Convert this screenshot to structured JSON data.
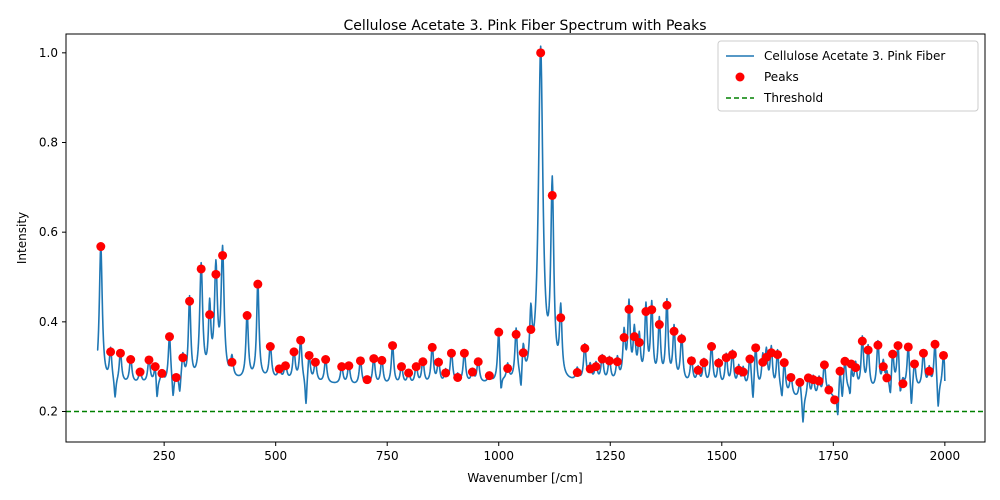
{
  "chart_data": {
    "type": "line",
    "title": "Cellulose Acetate 3. Pink Fiber Spectrum with Peaks",
    "xlabel": "Wavenumber [/cm]",
    "ylabel": "Intensity",
    "xlim": [
      30,
      2090
    ],
    "ylim": [
      0.132,
      1.042
    ],
    "xticks": [
      250,
      500,
      750,
      1000,
      1250,
      1500,
      1750,
      2000
    ],
    "yticks": [
      0.2,
      0.4,
      0.6,
      0.8,
      1.0
    ],
    "ytick_labels": [
      "0.2",
      "0.4",
      "0.6",
      "0.8",
      "1.0"
    ],
    "legend_position": "upper right",
    "colors": {
      "line": "#1f77b4",
      "peaks": "#ff0000",
      "threshold": "#008000"
    },
    "series": [
      {
        "name": "Cellulose Acetate 3. Pink Fiber",
        "kind": "line"
      },
      {
        "name": "Peaks",
        "kind": "scatter"
      },
      {
        "name": "Threshold",
        "kind": "hline",
        "value": 0.2
      }
    ],
    "spectrum_range": [
      100,
      2000
    ],
    "baseline": [
      [
        100,
        0.26
      ],
      [
        300,
        0.26
      ],
      [
        480,
        0.27
      ],
      [
        700,
        0.255
      ],
      [
        1000,
        0.26
      ],
      [
        1400,
        0.26
      ],
      [
        1600,
        0.24
      ],
      [
        1700,
        0.22
      ],
      [
        1800,
        0.24
      ],
      [
        2000,
        0.25
      ]
    ],
    "peaks": [
      {
        "x": 108,
        "y": 0.568
      },
      {
        "x": 130,
        "y": 0.333
      },
      {
        "x": 152,
        "y": 0.33
      },
      {
        "x": 175,
        "y": 0.316
      },
      {
        "x": 196,
        "y": 0.288
      },
      {
        "x": 216,
        "y": 0.315
      },
      {
        "x": 230,
        "y": 0.3
      },
      {
        "x": 245,
        "y": 0.285
      },
      {
        "x": 262,
        "y": 0.367
      },
      {
        "x": 277,
        "y": 0.276
      },
      {
        "x": 292,
        "y": 0.32
      },
      {
        "x": 307,
        "y": 0.446
      },
      {
        "x": 333,
        "y": 0.518
      },
      {
        "x": 352,
        "y": 0.416
      },
      {
        "x": 366,
        "y": 0.506
      },
      {
        "x": 381,
        "y": 0.548
      },
      {
        "x": 402,
        "y": 0.31
      },
      {
        "x": 436,
        "y": 0.414
      },
      {
        "x": 460,
        "y": 0.484
      },
      {
        "x": 488,
        "y": 0.345
      },
      {
        "x": 508,
        "y": 0.295
      },
      {
        "x": 522,
        "y": 0.302
      },
      {
        "x": 541,
        "y": 0.333
      },
      {
        "x": 556,
        "y": 0.359
      },
      {
        "x": 575,
        "y": 0.325
      },
      {
        "x": 589,
        "y": 0.31
      },
      {
        "x": 612,
        "y": 0.316
      },
      {
        "x": 648,
        "y": 0.3
      },
      {
        "x": 664,
        "y": 0.302
      },
      {
        "x": 690,
        "y": 0.313
      },
      {
        "x": 705,
        "y": 0.271
      },
      {
        "x": 720,
        "y": 0.318
      },
      {
        "x": 738,
        "y": 0.314
      },
      {
        "x": 762,
        "y": 0.347
      },
      {
        "x": 782,
        "y": 0.3
      },
      {
        "x": 798,
        "y": 0.286
      },
      {
        "x": 815,
        "y": 0.3
      },
      {
        "x": 830,
        "y": 0.311
      },
      {
        "x": 851,
        "y": 0.343
      },
      {
        "x": 865,
        "y": 0.31
      },
      {
        "x": 881,
        "y": 0.286
      },
      {
        "x": 894,
        "y": 0.33
      },
      {
        "x": 908,
        "y": 0.276
      },
      {
        "x": 923,
        "y": 0.33
      },
      {
        "x": 941,
        "y": 0.288
      },
      {
        "x": 954,
        "y": 0.311
      },
      {
        "x": 979,
        "y": 0.28
      },
      {
        "x": 1000,
        "y": 0.377
      },
      {
        "x": 1020,
        "y": 0.296
      },
      {
        "x": 1039,
        "y": 0.372
      },
      {
        "x": 1055,
        "y": 0.331
      },
      {
        "x": 1072,
        "y": 0.383
      },
      {
        "x": 1094,
        "y": 1.0
      },
      {
        "x": 1120,
        "y": 0.682
      },
      {
        "x": 1139,
        "y": 0.409
      },
      {
        "x": 1176,
        "y": 0.287
      },
      {
        "x": 1193,
        "y": 0.341
      },
      {
        "x": 1205,
        "y": 0.295
      },
      {
        "x": 1218,
        "y": 0.3
      },
      {
        "x": 1232,
        "y": 0.317
      },
      {
        "x": 1248,
        "y": 0.313
      },
      {
        "x": 1266,
        "y": 0.311
      },
      {
        "x": 1281,
        "y": 0.365
      },
      {
        "x": 1292,
        "y": 0.428
      },
      {
        "x": 1304,
        "y": 0.367
      },
      {
        "x": 1315,
        "y": 0.354
      },
      {
        "x": 1330,
        "y": 0.423
      },
      {
        "x": 1343,
        "y": 0.427
      },
      {
        "x": 1360,
        "y": 0.394
      },
      {
        "x": 1377,
        "y": 0.437
      },
      {
        "x": 1393,
        "y": 0.379
      },
      {
        "x": 1410,
        "y": 0.362
      },
      {
        "x": 1432,
        "y": 0.313
      },
      {
        "x": 1447,
        "y": 0.292
      },
      {
        "x": 1460,
        "y": 0.309
      },
      {
        "x": 1477,
        "y": 0.345
      },
      {
        "x": 1493,
        "y": 0.308
      },
      {
        "x": 1510,
        "y": 0.32
      },
      {
        "x": 1524,
        "y": 0.327
      },
      {
        "x": 1538,
        "y": 0.292
      },
      {
        "x": 1548,
        "y": 0.288
      },
      {
        "x": 1563,
        "y": 0.317
      },
      {
        "x": 1576,
        "y": 0.342
      },
      {
        "x": 1592,
        "y": 0.31
      },
      {
        "x": 1600,
        "y": 0.321
      },
      {
        "x": 1611,
        "y": 0.331
      },
      {
        "x": 1625,
        "y": 0.327
      },
      {
        "x": 1640,
        "y": 0.309
      },
      {
        "x": 1655,
        "y": 0.276
      },
      {
        "x": 1675,
        "y": 0.265
      },
      {
        "x": 1694,
        "y": 0.275
      },
      {
        "x": 1705,
        "y": 0.271
      },
      {
        "x": 1718,
        "y": 0.268
      },
      {
        "x": 1730,
        "y": 0.304
      },
      {
        "x": 1740,
        "y": 0.248
      },
      {
        "x": 1753,
        "y": 0.226
      },
      {
        "x": 1765,
        "y": 0.29
      },
      {
        "x": 1776,
        "y": 0.312
      },
      {
        "x": 1790,
        "y": 0.306
      },
      {
        "x": 1800,
        "y": 0.298
      },
      {
        "x": 1815,
        "y": 0.357
      },
      {
        "x": 1828,
        "y": 0.337
      },
      {
        "x": 1850,
        "y": 0.348
      },
      {
        "x": 1862,
        "y": 0.3
      },
      {
        "x": 1870,
        "y": 0.275
      },
      {
        "x": 1883,
        "y": 0.328
      },
      {
        "x": 1895,
        "y": 0.347
      },
      {
        "x": 1906,
        "y": 0.262
      },
      {
        "x": 1918,
        "y": 0.344
      },
      {
        "x": 1932,
        "y": 0.306
      },
      {
        "x": 1952,
        "y": 0.33
      },
      {
        "x": 1965,
        "y": 0.29
      },
      {
        "x": 1978,
        "y": 0.35
      },
      {
        "x": 1997,
        "y": 0.325
      }
    ],
    "dips": [
      {
        "x": 140,
        "y": 0.23
      },
      {
        "x": 234,
        "y": 0.225
      },
      {
        "x": 270,
        "y": 0.228
      },
      {
        "x": 285,
        "y": 0.24
      },
      {
        "x": 568,
        "y": 0.21
      },
      {
        "x": 1005,
        "y": 0.225
      },
      {
        "x": 1050,
        "y": 0.225
      },
      {
        "x": 1110,
        "y": 0.49
      },
      {
        "x": 1570,
        "y": 0.205
      },
      {
        "x": 1635,
        "y": 0.215
      },
      {
        "x": 1682,
        "y": 0.175
      },
      {
        "x": 1760,
        "y": 0.185
      },
      {
        "x": 1770,
        "y": 0.215
      },
      {
        "x": 1788,
        "y": 0.195
      },
      {
        "x": 1878,
        "y": 0.22
      },
      {
        "x": 1900,
        "y": 0.22
      },
      {
        "x": 1925,
        "y": 0.2
      },
      {
        "x": 1985,
        "y": 0.2
      }
    ],
    "series_start_y": 0.338,
    "series_end_y": 0.268
  }
}
